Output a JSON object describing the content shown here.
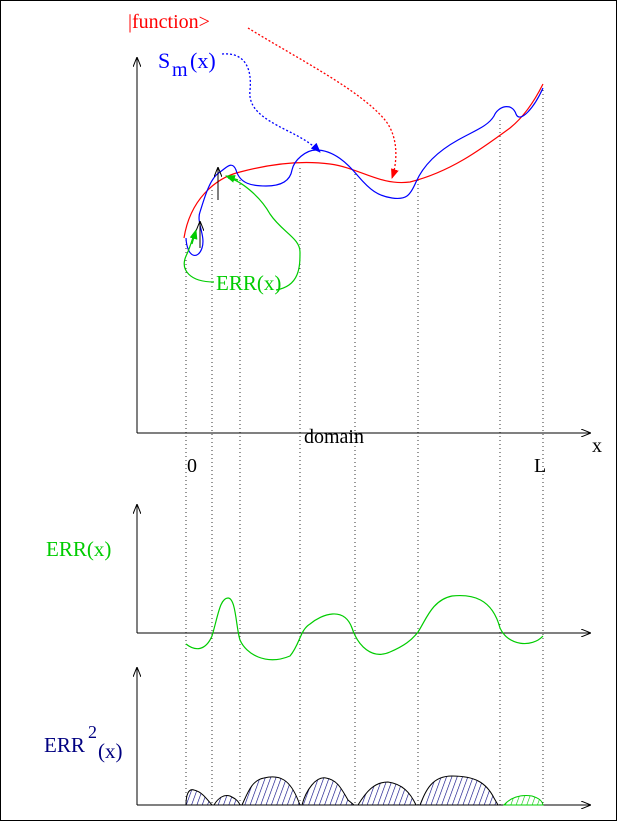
{
  "labels": {
    "function": "|function>",
    "sm_base": "S",
    "sm_sub": "m",
    "sm_arg": "(x)",
    "err_upper": "ERR(x)",
    "domain": "domain",
    "x_axis": "x",
    "zero": "0",
    "L": "L",
    "err_mid": "ERR(x)",
    "err2_base": "ERR",
    "err2_sup": "2",
    "err2_arg": "(x)"
  },
  "colors": {
    "function": "#ff0000",
    "sm": "#0000ff",
    "err": "#00cc00",
    "err2": "#000080",
    "axes": "#000000"
  }
}
